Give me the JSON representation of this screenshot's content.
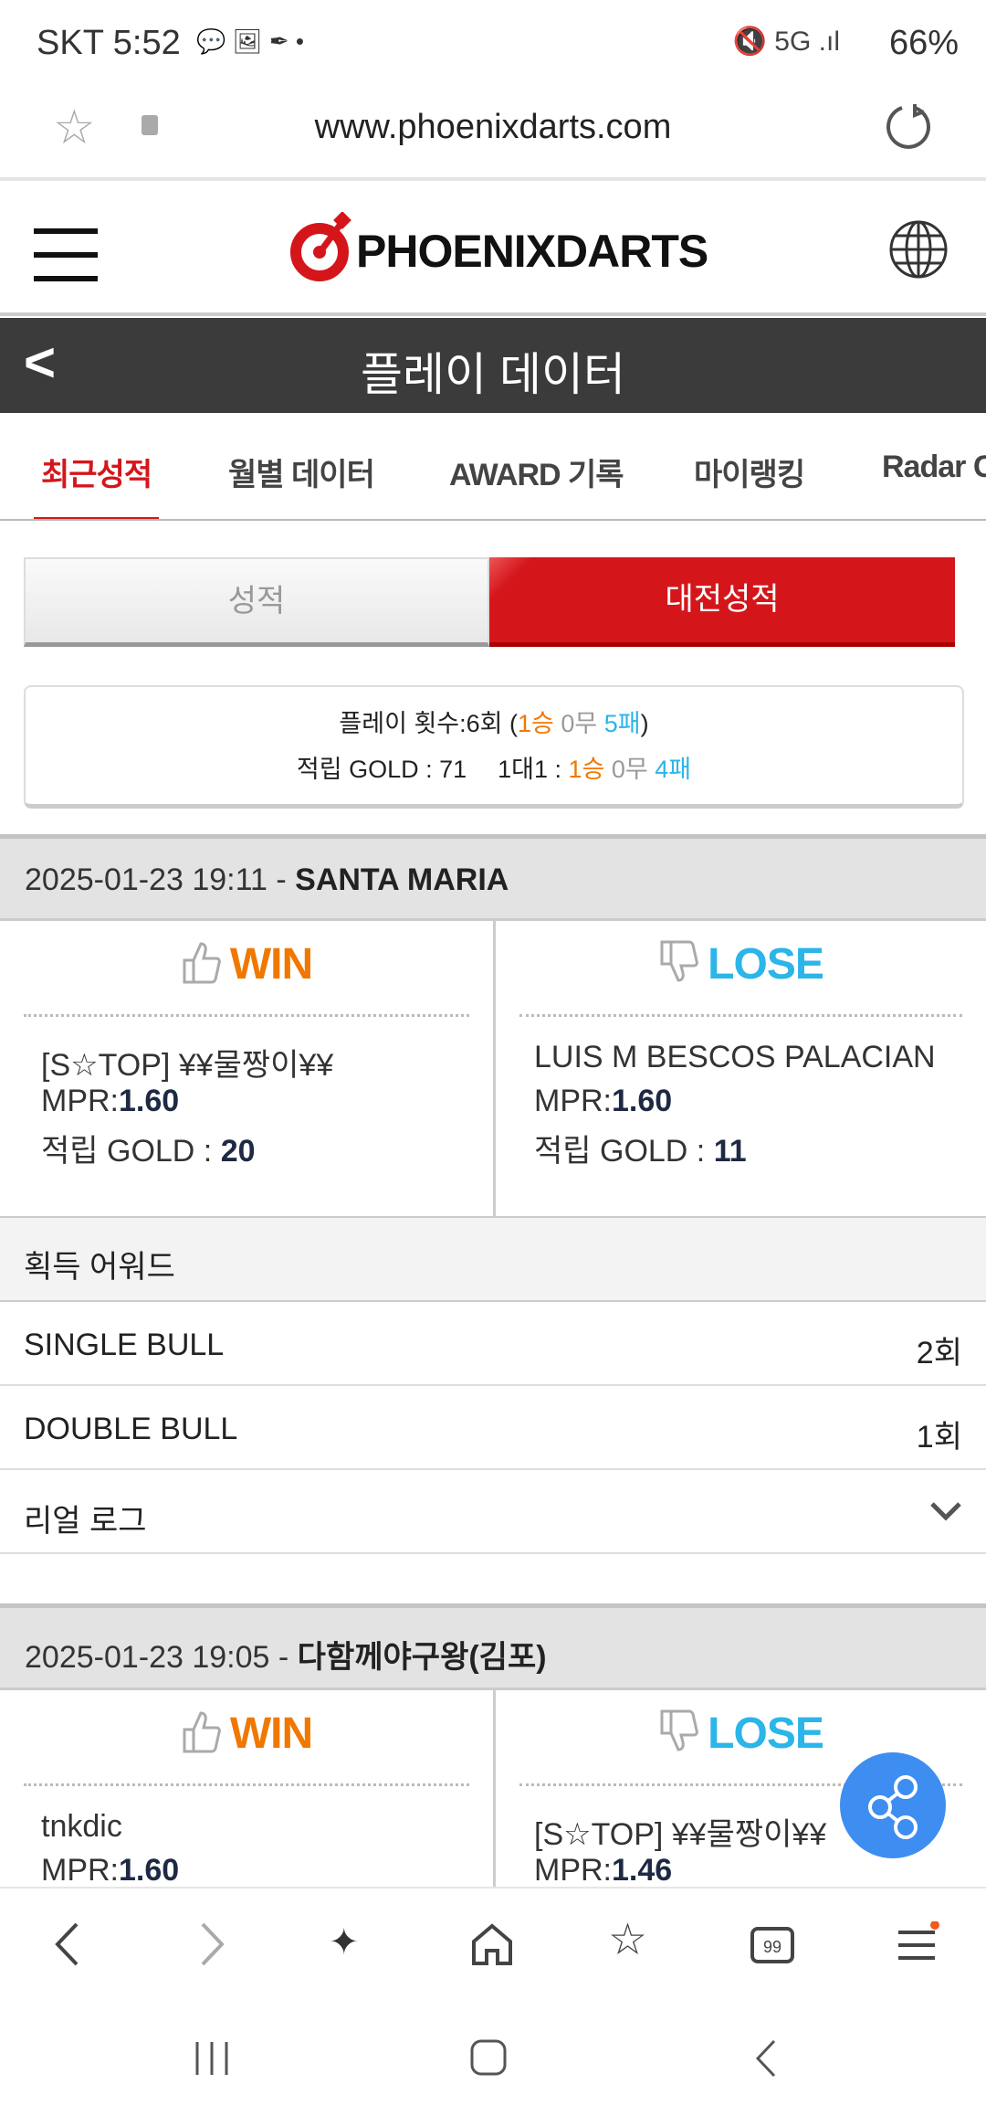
{
  "status": {
    "carrier_time": "SKT 5:52",
    "battery": "66%"
  },
  "browser": {
    "url": "www.phoenixdarts.com"
  },
  "site": {
    "logo": "PHOENIXDARTS"
  },
  "title": {
    "back": "<",
    "text": "플레이 데이터"
  },
  "tabs": [
    {
      "label": "최근성적",
      "active": true
    },
    {
      "label": "월별 데이터"
    },
    {
      "label": "AWARD 기록"
    },
    {
      "label": "마이랭킹"
    },
    {
      "label": "Radar C"
    }
  ],
  "segment": {
    "left": "성적",
    "right": "대전성적",
    "selected": "대전성적"
  },
  "summary": {
    "plays_label": "플레이 횟수:6회",
    "open": " (",
    "wins": "1승",
    "draws": " 0무 ",
    "losses": "5패",
    "close": ")",
    "gold_label": "적립 GOLD : 71",
    "vs_label": "1대1 : ",
    "vs_wins": "1승",
    "vs_draws": " 0무 ",
    "vs_losses": "4패"
  },
  "matches": [
    {
      "datetime": "2025-01-23 19:11 - ",
      "venue": "SANTA MARIA",
      "win": {
        "label": "WIN",
        "player": "[S☆TOP] ¥¥물짱이¥¥",
        "mpr_label": "MPR:",
        "mpr": "1.60",
        "gold_label": "적립 GOLD : ",
        "gold": "20"
      },
      "lose": {
        "label": "LOSE",
        "player": "LUIS M BESCOS PALACIAN",
        "mpr_label": "MPR:",
        "mpr": "1.60",
        "gold_label": "적립 GOLD : ",
        "gold": "11"
      },
      "awards_header": "획득 어워드",
      "awards": [
        {
          "name": "SINGLE BULL",
          "count": "2회"
        },
        {
          "name": "DOUBLE BULL",
          "count": "1회"
        }
      ],
      "real_log": "리얼 로그"
    },
    {
      "datetime": "2025-01-23 19:05 - ",
      "venue": "다함께야구왕(김포)",
      "win": {
        "label": "WIN",
        "player": "tnkdic",
        "mpr_label": "MPR:",
        "mpr": "1.60"
      },
      "lose": {
        "label": "LOSE",
        "player": "[S☆TOP] ¥¥물짱이¥¥",
        "mpr_label": "MPR:",
        "mpr": "1.46"
      }
    }
  ],
  "colors": {
    "brand": "#d4161b",
    "win": "#f07800",
    "lose": "#2bb5e8",
    "share": "#3d8ef0"
  }
}
